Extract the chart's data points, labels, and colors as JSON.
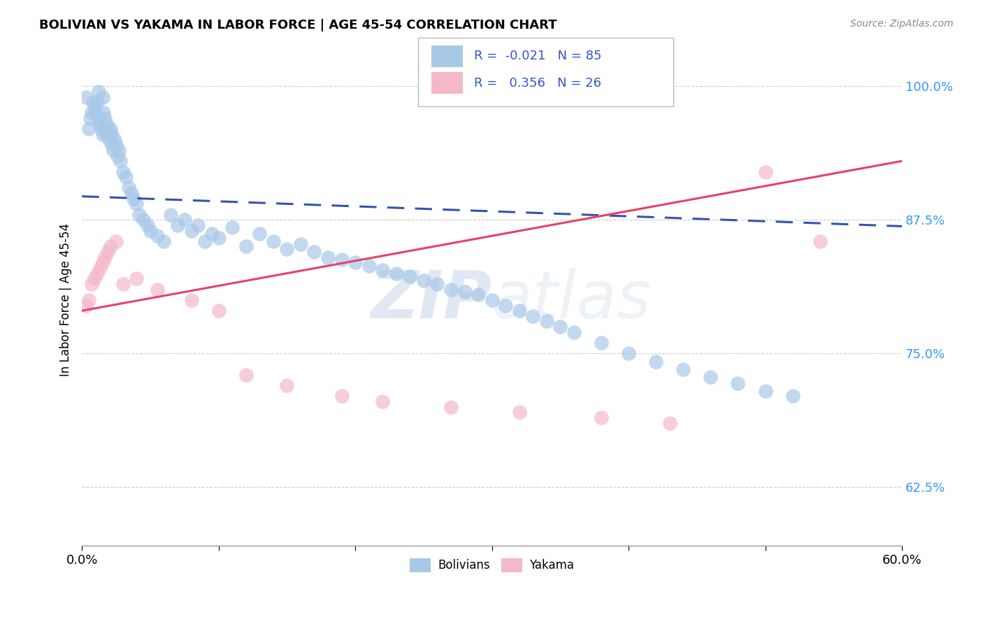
{
  "title": "BOLIVIAN VS YAKAMA IN LABOR FORCE | AGE 45-54 CORRELATION CHART",
  "source_text": "Source: ZipAtlas.com",
  "ylabel": "In Labor Force | Age 45-54",
  "xlim": [
    0.0,
    0.6
  ],
  "ylim": [
    0.57,
    1.03
  ],
  "yticks": [
    0.625,
    0.75,
    0.875,
    1.0
  ],
  "ytick_labels": [
    "62.5%",
    "75.0%",
    "87.5%",
    "100.0%"
  ],
  "xticks": [
    0.0,
    0.1,
    0.2,
    0.3,
    0.4,
    0.5,
    0.6
  ],
  "xtick_labels": [
    "0.0%",
    "",
    "",
    "",
    "",
    "",
    "60.0%"
  ],
  "legend_r_blue": "-0.021",
  "legend_n_blue": "85",
  "legend_r_pink": "0.356",
  "legend_n_pink": "26",
  "blue_color": "#a8c8e8",
  "pink_color": "#f4b8c8",
  "trendline_blue_color": "#3355aa",
  "trendline_pink_color": "#e84068",
  "watermark_zip": "ZIP",
  "watermark_atlas": "atlas",
  "blue_scatter_x": [
    0.003,
    0.005,
    0.006,
    0.007,
    0.008,
    0.009,
    0.01,
    0.011,
    0.012,
    0.012,
    0.013,
    0.014,
    0.015,
    0.015,
    0.016,
    0.016,
    0.017,
    0.018,
    0.018,
    0.019,
    0.02,
    0.02,
    0.021,
    0.022,
    0.022,
    0.023,
    0.024,
    0.025,
    0.026,
    0.027,
    0.028,
    0.03,
    0.032,
    0.034,
    0.036,
    0.038,
    0.04,
    0.042,
    0.045,
    0.048,
    0.05,
    0.055,
    0.06,
    0.065,
    0.07,
    0.075,
    0.08,
    0.085,
    0.09,
    0.095,
    0.1,
    0.11,
    0.12,
    0.13,
    0.14,
    0.15,
    0.16,
    0.17,
    0.18,
    0.19,
    0.2,
    0.21,
    0.22,
    0.23,
    0.24,
    0.25,
    0.26,
    0.27,
    0.28,
    0.29,
    0.3,
    0.31,
    0.32,
    0.33,
    0.34,
    0.35,
    0.36,
    0.38,
    0.4,
    0.42,
    0.44,
    0.46,
    0.48,
    0.5,
    0.52
  ],
  "blue_scatter_y": [
    0.99,
    0.96,
    0.97,
    0.975,
    0.985,
    0.98,
    0.975,
    0.985,
    0.995,
    0.97,
    0.965,
    0.96,
    0.99,
    0.955,
    0.975,
    0.96,
    0.97,
    0.965,
    0.955,
    0.96,
    0.955,
    0.95,
    0.96,
    0.955,
    0.945,
    0.94,
    0.95,
    0.945,
    0.935,
    0.94,
    0.93,
    0.92,
    0.915,
    0.905,
    0.9,
    0.895,
    0.89,
    0.88,
    0.875,
    0.87,
    0.865,
    0.86,
    0.855,
    0.88,
    0.87,
    0.875,
    0.865,
    0.87,
    0.855,
    0.862,
    0.858,
    0.868,
    0.85,
    0.862,
    0.855,
    0.848,
    0.852,
    0.845,
    0.84,
    0.838,
    0.835,
    0.832,
    0.828,
    0.825,
    0.822,
    0.818,
    0.815,
    0.81,
    0.808,
    0.805,
    0.8,
    0.795,
    0.79,
    0.785,
    0.78,
    0.775,
    0.77,
    0.76,
    0.75,
    0.742,
    0.735,
    0.728,
    0.722,
    0.715,
    0.71
  ],
  "pink_scatter_x": [
    0.003,
    0.005,
    0.007,
    0.009,
    0.011,
    0.013,
    0.015,
    0.017,
    0.019,
    0.021,
    0.025,
    0.03,
    0.04,
    0.055,
    0.08,
    0.1,
    0.12,
    0.15,
    0.19,
    0.22,
    0.27,
    0.32,
    0.38,
    0.43,
    0.5,
    0.54
  ],
  "pink_scatter_y": [
    0.795,
    0.8,
    0.815,
    0.82,
    0.825,
    0.83,
    0.835,
    0.84,
    0.845,
    0.85,
    0.855,
    0.815,
    0.82,
    0.81,
    0.8,
    0.79,
    0.73,
    0.72,
    0.71,
    0.705,
    0.7,
    0.695,
    0.69,
    0.685,
    0.92,
    0.855
  ],
  "blue_trend_x": [
    0.0,
    0.6
  ],
  "blue_trend_y": [
    0.897,
    0.869
  ],
  "pink_trend_x": [
    0.0,
    0.6
  ],
  "pink_trend_y": [
    0.79,
    0.93
  ]
}
